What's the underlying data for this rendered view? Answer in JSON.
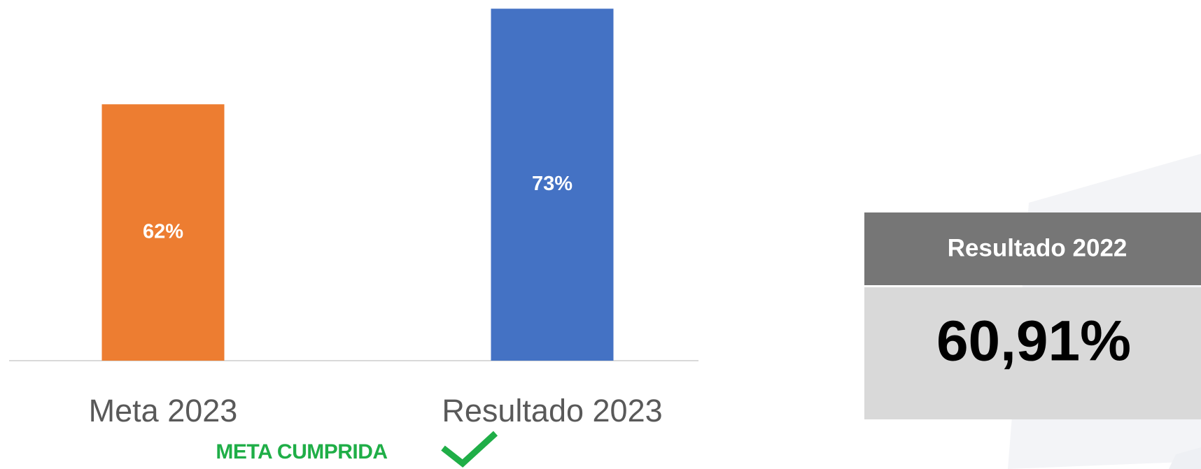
{
  "chart_data": {
    "type": "bar",
    "categories": [
      "Meta 2023",
      "Resultado 2023"
    ],
    "values": [
      62,
      73
    ],
    "value_labels": [
      "62%",
      "73%"
    ],
    "colors": [
      "#ED7D31",
      "#4472C4"
    ],
    "ylim": [
      32.5,
      74
    ],
    "annotation": "META CUMPRIDA"
  },
  "card": {
    "title": "Resultado 2022",
    "value": "60,91%"
  }
}
